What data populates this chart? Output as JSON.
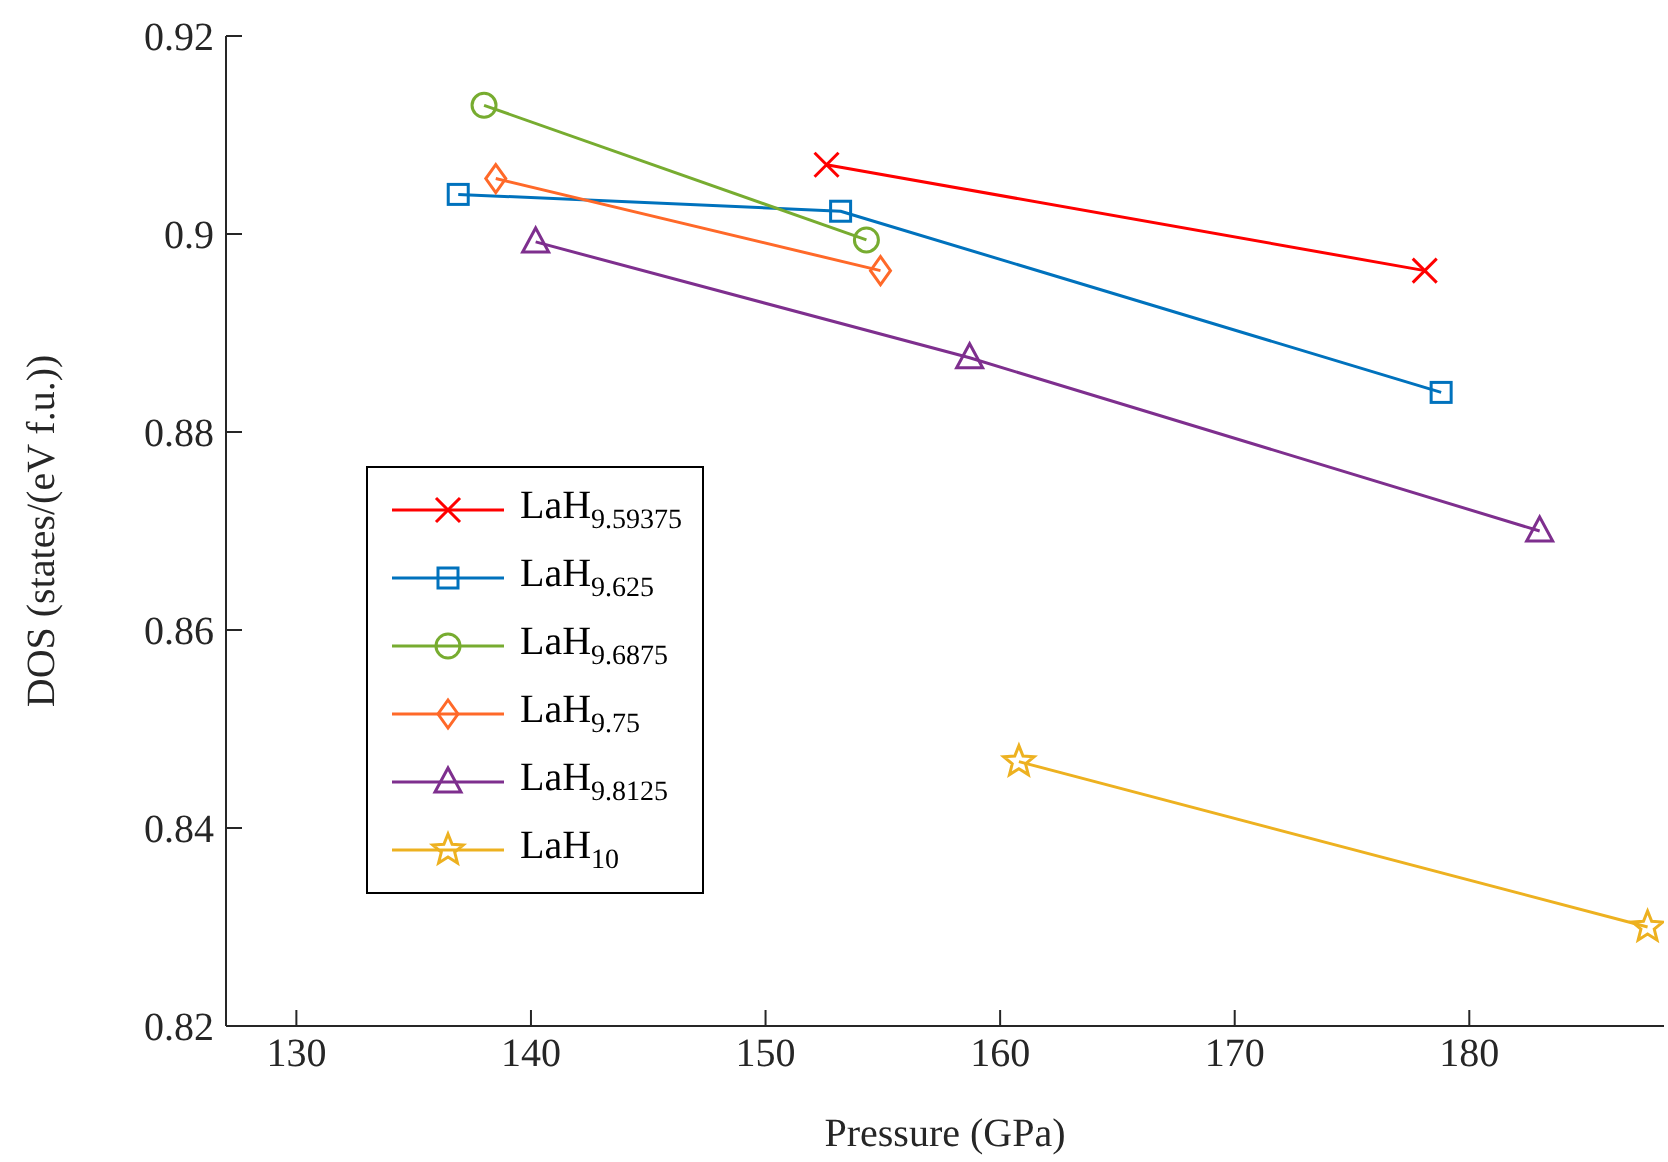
{
  "chart_data": {
    "type": "line",
    "xlabel": "Pressure (GPa)",
    "ylabel": "DOS (states/(eV f.u.))",
    "xlim": [
      127,
      188.3
    ],
    "xticks": [
      130,
      140,
      150,
      160,
      170,
      180
    ],
    "ylim": [
      0.82,
      0.92
    ],
    "yticks": [
      0.82,
      0.84,
      0.86,
      0.88,
      0.9,
      0.92
    ],
    "legend": "left",
    "line_style": "solid",
    "series": [
      {
        "name": "LaH$_{9.59375}$",
        "color": "#ff0000",
        "marker": "cross",
        "x": [
          152.6,
          178.1
        ],
        "values": [
          0.907,
          0.8963
        ]
      },
      {
        "name": "LaH$_{9.625}$",
        "color": "#0072bd",
        "marker": "square",
        "x": [
          136.9,
          153.2,
          178.8
        ],
        "values": [
          0.904,
          0.9023,
          0.884
        ]
      },
      {
        "name": "LaH$_{9.6875}$",
        "color": "#77ac30",
        "marker": "circle",
        "x": [
          138.0,
          154.3
        ],
        "values": [
          0.913,
          0.8994
        ]
      },
      {
        "name": "LaH$_{9.75}$",
        "color": "#ff6929",
        "marker": "diamond",
        "x": [
          138.5,
          154.9
        ],
        "values": [
          0.9056,
          0.8963
        ]
      },
      {
        "name": "LaH$_{9.8125}$",
        "color": "#7e2f8e",
        "marker": "triangle",
        "x": [
          140.2,
          158.7,
          183.0
        ],
        "values": [
          0.8992,
          0.8875,
          0.87
        ]
      },
      {
        "name": "LaH$_{10}$",
        "color": "#edb120",
        "marker": "star",
        "x": [
          160.8,
          187.6
        ],
        "values": [
          0.8467,
          0.83
        ]
      }
    ]
  }
}
